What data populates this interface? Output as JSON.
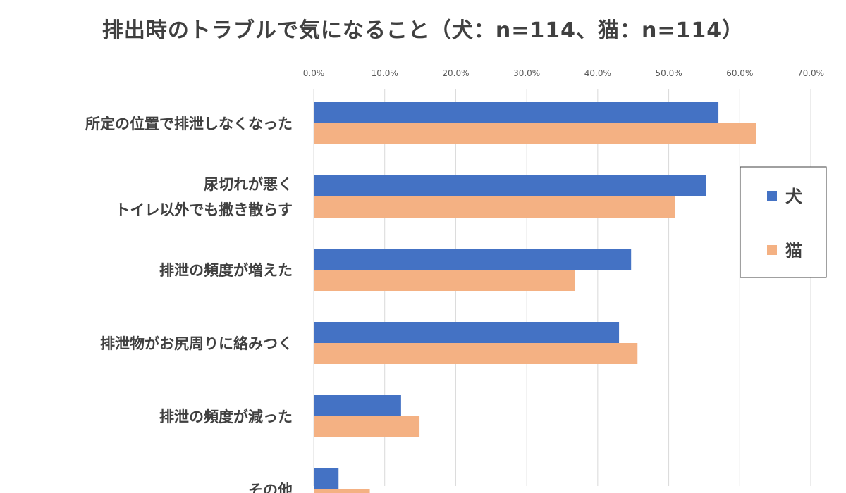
{
  "chart_data": {
    "type": "bar",
    "orientation": "horizontal",
    "title": "排出時のトラブルで気になること（犬：n=114、猫：n=114）",
    "xlabel": "",
    "ylabel": "",
    "xlim": [
      0,
      70
    ],
    "x_ticks": [
      "0.0%",
      "10.0%",
      "20.0%",
      "30.0%",
      "40.0%",
      "50.0%",
      "60.0%",
      "70.0%"
    ],
    "categories": [
      "所定の位置で排泄しなくなった",
      "尿切れが悪く\nトイレ以外でも撒き散らす",
      "排泄の頻度が増えた",
      "排泄物がお尻周りに絡みつく",
      "排泄の頻度が減った",
      "その他"
    ],
    "series": [
      {
        "name": "犬",
        "color": "#4472C4",
        "values": [
          57.0,
          55.3,
          44.7,
          43.0,
          12.3,
          3.5
        ]
      },
      {
        "name": "猫",
        "color": "#F4B183",
        "values": [
          62.3,
          50.9,
          36.8,
          45.6,
          14.9,
          7.9
        ]
      }
    ],
    "grid": "vertical",
    "legend_position": "right"
  }
}
